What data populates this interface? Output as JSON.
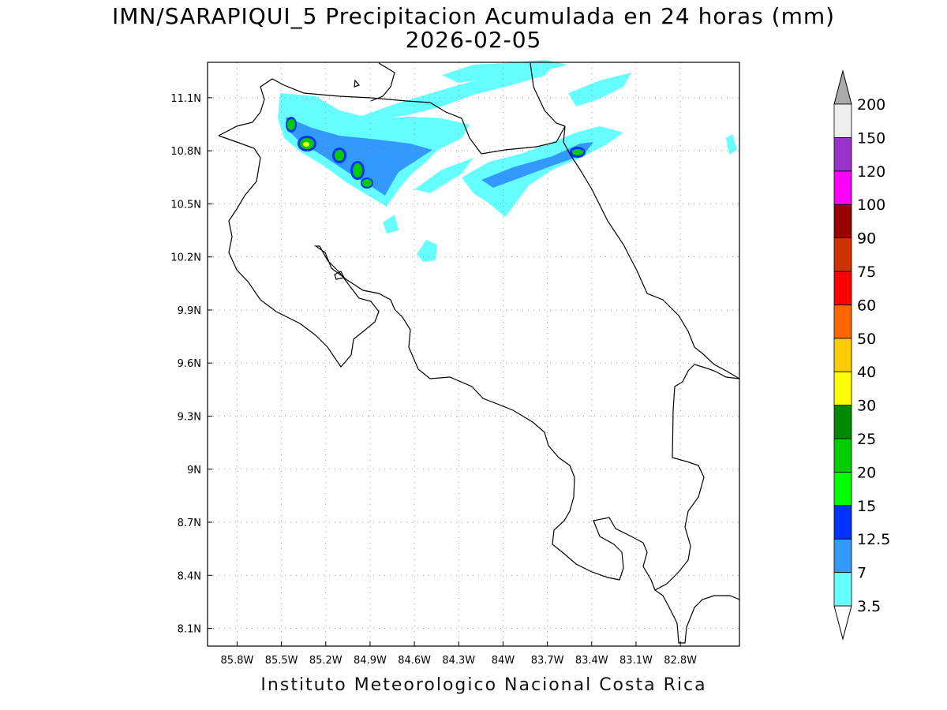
{
  "title": {
    "line1": "IMN/SARAPIQUI_5 Precipitacion Acumulada en 24 horas (mm)",
    "line2": "2026-02-05"
  },
  "footer": "Instituto Meteorologico Nacional Costa Rica",
  "map": {
    "lon_range": [
      -86.0,
      -82.4
    ],
    "lat_range": [
      8.0,
      11.3
    ],
    "grid": true,
    "x_ticks": [
      "85.8W",
      "85.5W",
      "85.2W",
      "84.9W",
      "84.6W",
      "84.3W",
      "84W",
      "83.7W",
      "83.4W",
      "83.1W",
      "82.8W"
    ],
    "x_tick_values": [
      -85.8,
      -85.5,
      -85.2,
      -84.9,
      -84.6,
      -84.3,
      -84.0,
      -83.7,
      -83.4,
      -83.1,
      -82.8
    ],
    "y_ticks": [
      "11.1N",
      "10.8N",
      "10.5N",
      "10.2N",
      "9.9N",
      "9.6N",
      "9.3N",
      "9N",
      "8.7N",
      "8.4N",
      "8.1N"
    ],
    "y_tick_values": [
      11.1,
      10.8,
      10.5,
      10.2,
      9.9,
      9.6,
      9.3,
      9.0,
      8.7,
      8.4,
      8.1
    ]
  },
  "legend": {
    "levels": [
      "3.5",
      "7",
      "12.5",
      "15",
      "20",
      "25",
      "30",
      "40",
      "50",
      "60",
      "75",
      "90",
      "100",
      "120",
      "150",
      "200"
    ],
    "colors": [
      "#66ffff",
      "#3399ff",
      "#0033ff",
      "#00ff00",
      "#00cc00",
      "#008800",
      "#ffff00",
      "#ffcc00",
      "#ff6600",
      "#ff0000",
      "#cc3300",
      "#990000",
      "#ff00ff",
      "#9933cc",
      "#eeeeee"
    ],
    "top_arrow_color": "#aaaaaa",
    "bottom_arrow_color": "#ffffff"
  }
}
